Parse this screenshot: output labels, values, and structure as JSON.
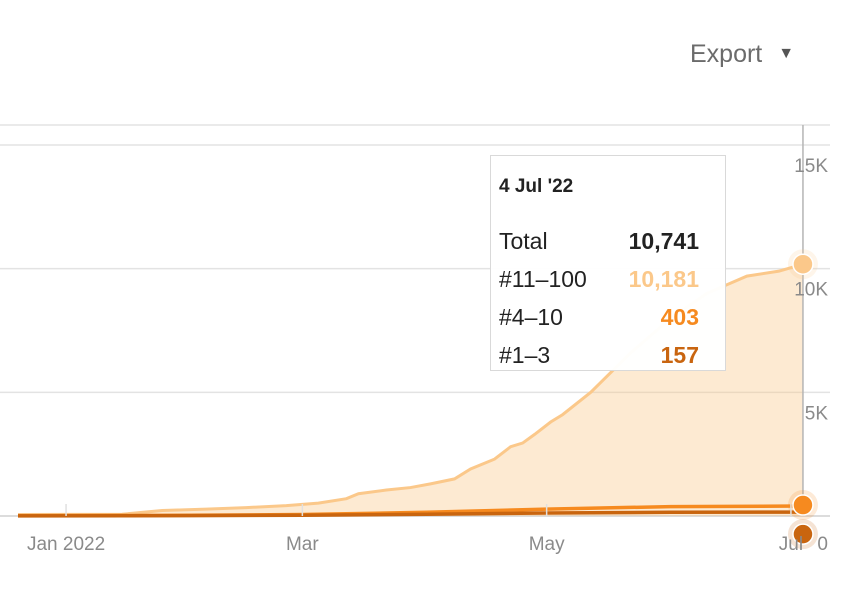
{
  "toolbar": {
    "export_label": "Export",
    "export_caret": "▼"
  },
  "chart_data": {
    "type": "area",
    "x_ticks": [
      "Jan 2022",
      "Mar",
      "May",
      "Jul"
    ],
    "y_ticks": [
      "0",
      "5K",
      "10K",
      "15K"
    ],
    "ylim": [
      0,
      15000
    ],
    "xlim": [
      "2021-12-18",
      "2022-07-12"
    ],
    "grid": true,
    "series": [
      {
        "name": "#11–100",
        "color": "#fbc88a",
        "points": [
          [
            "2021-12-20",
            60
          ],
          [
            "2022-01-15",
            70
          ],
          [
            "2022-01-25",
            220
          ],
          [
            "2022-02-05",
            280
          ],
          [
            "2022-02-15",
            340
          ],
          [
            "2022-02-25",
            420
          ],
          [
            "2022-03-05",
            520
          ],
          [
            "2022-03-12",
            700
          ],
          [
            "2022-03-15",
            900
          ],
          [
            "2022-03-22",
            1050
          ],
          [
            "2022-03-28",
            1150
          ],
          [
            "2022-04-02",
            1300
          ],
          [
            "2022-04-08",
            1500
          ],
          [
            "2022-04-12",
            1900
          ],
          [
            "2022-04-18",
            2300
          ],
          [
            "2022-04-22",
            2800
          ],
          [
            "2022-04-25",
            2950
          ],
          [
            "2022-04-28",
            3300
          ],
          [
            "2022-05-02",
            3800
          ],
          [
            "2022-05-05",
            4100
          ],
          [
            "2022-05-12",
            5000
          ],
          [
            "2022-05-22",
            6600
          ],
          [
            "2022-06-01",
            8000
          ],
          [
            "2022-06-10",
            9000
          ],
          [
            "2022-06-20",
            9700
          ],
          [
            "2022-06-28",
            9900
          ],
          [
            "2022-07-04",
            10181
          ]
        ]
      },
      {
        "name": "#4–10",
        "color": "#f68a1f",
        "points": [
          [
            "2021-12-20",
            10
          ],
          [
            "2022-02-01",
            30
          ],
          [
            "2022-03-01",
            60
          ],
          [
            "2022-04-01",
            150
          ],
          [
            "2022-05-01",
            280
          ],
          [
            "2022-06-01",
            380
          ],
          [
            "2022-07-04",
            403
          ]
        ]
      },
      {
        "name": "#1–3",
        "color": "#c9650f",
        "points": [
          [
            "2021-12-20",
            5
          ],
          [
            "2022-02-01",
            15
          ],
          [
            "2022-03-01",
            30
          ],
          [
            "2022-04-01",
            70
          ],
          [
            "2022-05-01",
            120
          ],
          [
            "2022-06-01",
            150
          ],
          [
            "2022-07-04",
            157
          ]
        ]
      }
    ],
    "tooltip": {
      "date": "4 Jul '22",
      "total_label": "Total",
      "total_value": "10,741",
      "rows": [
        {
          "label": "#11–100",
          "value": "10,181",
          "color": "#fbc88a"
        },
        {
          "label": "#4–10",
          "value": "403",
          "color": "#f68a1f"
        },
        {
          "label": "#1–3",
          "value": "157",
          "color": "#c9650f"
        }
      ]
    }
  }
}
